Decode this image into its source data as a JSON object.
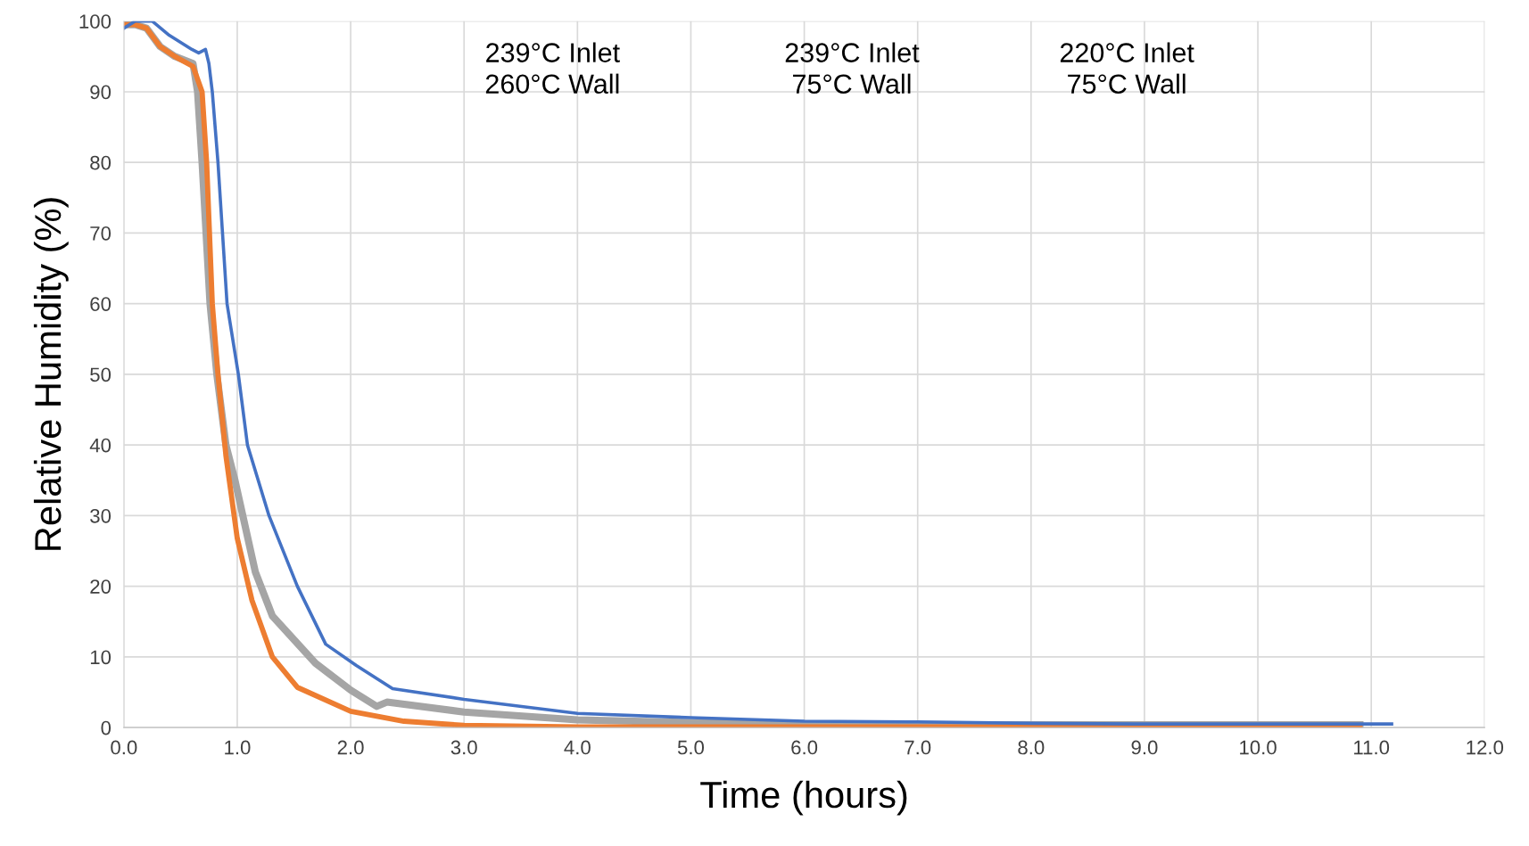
{
  "chart_data": {
    "type": "line",
    "xlabel": "Time (hours)",
    "ylabel": "Relative Humidity (%)",
    "annotations": [
      "239°C Inlet\n260°C Wall",
      "239°C Inlet\n75°C Wall",
      "220°C Inlet\n75°C Wall"
    ],
    "xlim": [
      0,
      12
    ],
    "xticks": [
      {
        "value": 0,
        "label": "0.0"
      },
      {
        "value": 1,
        "label": "1.0"
      },
      {
        "value": 2,
        "label": "2.0"
      },
      {
        "value": 3,
        "label": "3.0"
      },
      {
        "value": 4,
        "label": "4.0"
      },
      {
        "value": 5,
        "label": "5.0"
      },
      {
        "value": 6,
        "label": "6.0"
      },
      {
        "value": 7,
        "label": "7.0"
      },
      {
        "value": 8,
        "label": "8.0"
      },
      {
        "value": 9,
        "label": "9.0"
      },
      {
        "value": 10,
        "label": "10.0"
      },
      {
        "value": 11,
        "label": "11.0"
      },
      {
        "value": 12,
        "label": "12.0"
      }
    ],
    "ylim": [
      0,
      100
    ],
    "yticks": [
      0,
      10,
      20,
      30,
      40,
      50,
      60,
      70,
      80,
      90,
      100
    ],
    "grid": true,
    "line_style": "solid",
    "series": [
      {
        "color": "#a5a5a5",
        "x": [
          0,
          0.1,
          0.2,
          0.32,
          0.45,
          0.61,
          0.65,
          0.69,
          0.76,
          0.82,
          0.9,
          0.98,
          1.16,
          1.31,
          1.69,
          2.0,
          2.23,
          2.32,
          3.0,
          4.0,
          5.0,
          6.0,
          7.0,
          8.0,
          9.0,
          10.0,
          10.9
        ],
        "values": [
          99.5,
          99.5,
          99,
          96.4,
          95,
          94,
          90,
          80,
          60,
          50,
          40,
          35,
          22,
          15.8,
          9.1,
          5.3,
          3.0,
          3.6,
          2.2,
          1.1,
          0.7,
          0.5,
          0.4,
          0.4,
          0.4,
          0.4,
          0.4
        ]
      },
      {
        "color": "#ed7d31",
        "x": [
          0,
          0.1,
          0.2,
          0.32,
          0.45,
          0.61,
          0.69,
          0.73,
          0.78,
          0.83,
          0.9,
          1.0,
          1.13,
          1.31,
          1.53,
          2.0,
          2.47,
          3.0,
          4.0,
          5.0,
          6.0,
          7.0,
          8.0,
          9.0,
          10.0,
          10.9
        ],
        "values": [
          99.5,
          99.5,
          99,
          96.4,
          95,
          93.6,
          90,
          80,
          60,
          50,
          38.5,
          26.8,
          18,
          10,
          5.7,
          2.3,
          0.9,
          0.3,
          0.1,
          0.1,
          0.1,
          0.1,
          0.1,
          0.1,
          0.1,
          0.1
        ]
      },
      {
        "color": "#4472c4",
        "x": [
          0,
          0.1,
          0.25,
          0.4,
          0.6,
          0.66,
          0.72,
          0.75,
          0.78,
          0.83,
          0.87,
          0.91,
          1.01,
          1.09,
          1.28,
          1.53,
          1.78,
          2.05,
          2.37,
          3.0,
          4.0,
          5.0,
          6.0,
          7.0,
          8.0,
          9.0,
          10.0,
          11.0,
          11.18
        ],
        "values": [
          99,
          100,
          100,
          98,
          96,
          95.5,
          96,
          94,
          90,
          80,
          70,
          60,
          50,
          40,
          30,
          20,
          11.8,
          8.8,
          5.5,
          4.0,
          2.0,
          1.4,
          0.9,
          0.8,
          0.6,
          0.5,
          0.5,
          0.5,
          0.5
        ]
      }
    ]
  }
}
